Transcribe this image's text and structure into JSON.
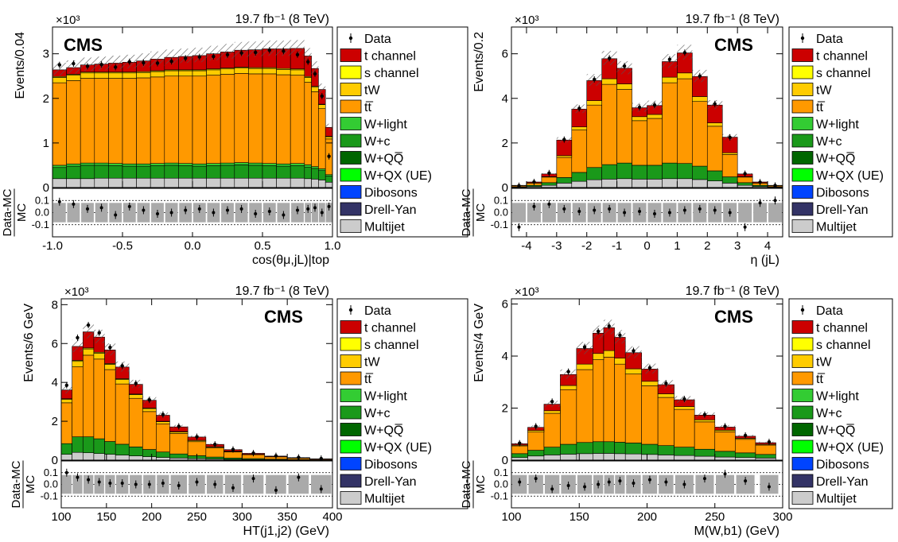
{
  "figure": {
    "lumi_label": "19.7 fb⁻¹ (8 TeV)",
    "cms_label": "CMS",
    "exponent_label": "×10³",
    "ratio_ylabel_top": "Data-MC",
    "ratio_ylabel_bottom": "MC"
  },
  "legend": [
    {
      "label": "Data",
      "style": "marker",
      "color": "#000000"
    },
    {
      "label": "t channel",
      "italic": "t",
      "style": "fill",
      "color": "#cc0000"
    },
    {
      "label": "s channel",
      "italic": "s",
      "style": "fill",
      "color": "#ffff00"
    },
    {
      "label": "tW",
      "style": "fill",
      "color": "#ffcc00"
    },
    {
      "label": "tt̅",
      "style": "fill",
      "color": "#ff9900"
    },
    {
      "label": "W+light",
      "style": "fill",
      "color": "#33cc33"
    },
    {
      "label": "W+c",
      "style": "fill",
      "color": "#1a991a"
    },
    {
      "label": "W+QQ̅",
      "style": "fill",
      "color": "#006600"
    },
    {
      "label": "W+QX (UE)",
      "style": "fill",
      "color": "#00ff00"
    },
    {
      "label": "Dibosons",
      "style": "fill",
      "color": "#0044ff"
    },
    {
      "label": "Drell-Yan",
      "style": "fill",
      "color": "#333366"
    },
    {
      "label": "Multijet",
      "style": "fill",
      "color": "#cccccc"
    }
  ],
  "chart_data": [
    {
      "id": "costheta",
      "type": "area",
      "title": "",
      "xlabel": "cos(θμ,jL)|top",
      "ylabel": "Events/0.04",
      "xlim": [
        -1.0,
        1.0
      ],
      "ylim": [
        0,
        3.6
      ],
      "y_scale_factor": 1000,
      "xticks": [
        -1.0,
        -0.5,
        0.0,
        0.5,
        1.0
      ],
      "xtick_labels": [
        "-1.0",
        "-0.5",
        "0.0",
        "0.5",
        "1.0"
      ],
      "yticks": [
        0,
        1,
        2,
        3
      ],
      "ratio_ylim": [
        -0.2,
        0.2
      ],
      "ratio_yticks": [
        -0.1,
        0.0,
        0.1
      ],
      "bins": [
        -1.0,
        -0.9,
        -0.8,
        -0.7,
        -0.6,
        -0.5,
        -0.4,
        -0.3,
        -0.2,
        -0.1,
        0.0,
        0.1,
        0.2,
        0.3,
        0.4,
        0.5,
        0.6,
        0.7,
        0.8,
        0.85,
        0.9,
        0.95
      ],
      "series": [
        {
          "name": "Multijet",
          "values": [
            0.2,
            0.2,
            0.2,
            0.21,
            0.21,
            0.21,
            0.21,
            0.21,
            0.21,
            0.21,
            0.21,
            0.21,
            0.21,
            0.21,
            0.21,
            0.21,
            0.21,
            0.21,
            0.2,
            0.19,
            0.17,
            0.12
          ]
        },
        {
          "name": "W+c",
          "values": [
            0.25,
            0.28,
            0.3,
            0.29,
            0.28,
            0.27,
            0.27,
            0.28,
            0.29,
            0.28,
            0.27,
            0.28,
            0.29,
            0.3,
            0.29,
            0.28,
            0.27,
            0.28,
            0.26,
            0.24,
            0.21,
            0.14
          ]
        },
        {
          "name": "W+light",
          "values": [
            0.05,
            0.05,
            0.05,
            0.05,
            0.05,
            0.05,
            0.05,
            0.05,
            0.05,
            0.05,
            0.05,
            0.05,
            0.05,
            0.05,
            0.05,
            0.05,
            0.05,
            0.05,
            0.05,
            0.04,
            0.04,
            0.03
          ]
        },
        {
          "name": "tt̅",
          "values": [
            1.85,
            1.87,
            1.9,
            1.9,
            1.91,
            1.92,
            1.93,
            1.94,
            1.95,
            1.96,
            1.97,
            1.98,
            1.99,
            2.0,
            2.0,
            2.01,
            2.0,
            1.98,
            1.85,
            1.68,
            1.35,
            0.8
          ]
        },
        {
          "name": "tW",
          "values": [
            0.12,
            0.12,
            0.12,
            0.12,
            0.12,
            0.12,
            0.12,
            0.12,
            0.12,
            0.12,
            0.12,
            0.12,
            0.12,
            0.12,
            0.12,
            0.12,
            0.12,
            0.12,
            0.11,
            0.1,
            0.09,
            0.05
          ]
        },
        {
          "name": "s channel",
          "values": [
            0.02,
            0.02,
            0.02,
            0.02,
            0.02,
            0.02,
            0.02,
            0.02,
            0.02,
            0.02,
            0.02,
            0.02,
            0.02,
            0.02,
            0.02,
            0.02,
            0.02,
            0.02,
            0.02,
            0.02,
            0.01,
            0.01
          ]
        },
        {
          "name": "t channel",
          "values": [
            0.15,
            0.15,
            0.16,
            0.18,
            0.2,
            0.22,
            0.24,
            0.26,
            0.28,
            0.3,
            0.32,
            0.34,
            0.36,
            0.38,
            0.4,
            0.42,
            0.44,
            0.46,
            0.46,
            0.4,
            0.33,
            0.2
          ]
        }
      ],
      "data_x": [
        -0.95,
        -0.85,
        -0.75,
        -0.65,
        -0.55,
        -0.45,
        -0.35,
        -0.25,
        -0.15,
        -0.05,
        0.05,
        0.15,
        0.25,
        0.35,
        0.45,
        0.55,
        0.65,
        0.75,
        0.825,
        0.875,
        0.925,
        0.975
      ],
      "data_values": [
        2.75,
        2.78,
        2.72,
        2.76,
        2.7,
        2.82,
        2.8,
        2.79,
        2.83,
        2.9,
        2.93,
        2.94,
        2.98,
        3.02,
        3.03,
        3.08,
        3.06,
        2.98,
        2.82,
        2.55,
        2.05,
        0.7
      ],
      "ratio_values": [
        0.09,
        0.07,
        0.03,
        0.04,
        -0.02,
        0.05,
        0.02,
        -0.01,
        0.0,
        0.02,
        0.03,
        0.0,
        0.02,
        0.03,
        -0.01,
        0.01,
        -0.02,
        0.02,
        0.03,
        0.04,
        0.0,
        0.05
      ],
      "labels_at_left": true
    },
    {
      "id": "eta",
      "type": "area",
      "title": "",
      "xlabel": "η (jL)",
      "ylabel": "Events/0.2",
      "xlim": [
        -4.5,
        4.5
      ],
      "ylim": [
        0,
        7.2
      ],
      "y_scale_factor": 1000,
      "xticks": [
        -4,
        -3,
        -2,
        -1,
        0,
        1,
        2,
        3,
        4
      ],
      "xtick_labels": [
        "-4",
        "-3",
        "-2",
        "-1",
        "0",
        "1",
        "2",
        "3",
        "4"
      ],
      "yticks": [
        0,
        2,
        4,
        6
      ],
      "ratio_ylim": [
        -0.2,
        0.2
      ],
      "ratio_yticks": [
        -0.1,
        0.0,
        0.1
      ],
      "bins": [
        -4.5,
        -4.0,
        -3.5,
        -3.0,
        -2.5,
        -2.0,
        -1.5,
        -1.0,
        -0.5,
        0.0,
        0.5,
        1.0,
        1.5,
        2.0,
        2.5,
        3.0,
        3.5,
        4.0
      ],
      "series": [
        {
          "name": "Multijet",
          "values": [
            0.02,
            0.05,
            0.1,
            0.2,
            0.28,
            0.35,
            0.38,
            0.4,
            0.38,
            0.38,
            0.4,
            0.4,
            0.36,
            0.3,
            0.2,
            0.1,
            0.05,
            0.02
          ]
        },
        {
          "name": "W+c",
          "values": [
            0.02,
            0.05,
            0.12,
            0.25,
            0.4,
            0.55,
            0.65,
            0.7,
            0.62,
            0.62,
            0.7,
            0.68,
            0.6,
            0.45,
            0.28,
            0.12,
            0.05,
            0.02
          ]
        },
        {
          "name": "tt̅",
          "values": [
            0.05,
            0.1,
            0.25,
            0.9,
            1.9,
            2.8,
            3.6,
            3.3,
            2.0,
            2.1,
            3.6,
            3.8,
            2.9,
            2.0,
            1.0,
            0.25,
            0.1,
            0.05
          ]
        },
        {
          "name": "tW",
          "values": [
            0.0,
            0.01,
            0.02,
            0.08,
            0.14,
            0.2,
            0.25,
            0.25,
            0.18,
            0.18,
            0.25,
            0.26,
            0.22,
            0.15,
            0.08,
            0.02,
            0.01,
            0.0
          ]
        },
        {
          "name": "t channel",
          "values": [
            0.01,
            0.04,
            0.12,
            0.7,
            0.8,
            0.9,
            0.9,
            0.7,
            0.4,
            0.4,
            0.7,
            0.9,
            0.9,
            0.8,
            0.7,
            0.12,
            0.04,
            0.01
          ]
        }
      ],
      "data_x": [
        -4.25,
        -3.75,
        -3.25,
        -2.75,
        -2.25,
        -1.75,
        -1.25,
        -0.75,
        -0.25,
        0.25,
        0.75,
        1.25,
        1.75,
        2.25,
        2.75,
        3.25,
        3.75,
        4.25
      ],
      "data_values": [
        0.08,
        0.25,
        0.65,
        2.15,
        3.55,
        4.85,
        5.8,
        5.45,
        3.6,
        3.7,
        5.75,
        6.05,
        5.0,
        3.75,
        2.25,
        0.62,
        0.24,
        0.09
      ],
      "ratio_values": [
        -0.12,
        0.05,
        0.07,
        0.03,
        0.01,
        0.02,
        0.03,
        0.0,
        0.01,
        -0.01,
        0.0,
        0.02,
        0.03,
        0.02,
        0.0,
        -0.12,
        0.08,
        0.1
      ],
      "labels_at_left": false
    },
    {
      "id": "ht",
      "type": "area",
      "title": "",
      "xlabel": "HT(j1,j2) (GeV)",
      "ylabel": "Events/6 GeV",
      "xlim": [
        100,
        400
      ],
      "ylim": [
        0,
        8.3
      ],
      "y_scale_factor": 1000,
      "xticks": [
        100,
        150,
        200,
        250,
        300,
        350,
        400
      ],
      "xtick_labels": [
        "100",
        "150",
        "200",
        "250",
        "300",
        "350",
        "400"
      ],
      "yticks": [
        0,
        2,
        4,
        6,
        8
      ],
      "ratio_ylim": [
        -0.2,
        0.2
      ],
      "ratio_yticks": [
        -0.1,
        0.0,
        0.1
      ],
      "bins": [
        100,
        112,
        124,
        136,
        148,
        160,
        175,
        190,
        205,
        220,
        240,
        260,
        280,
        300,
        325,
        350,
        375
      ],
      "series": [
        {
          "name": "Multijet",
          "values": [
            0.3,
            0.4,
            0.38,
            0.34,
            0.3,
            0.26,
            0.22,
            0.18,
            0.14,
            0.11,
            0.08,
            0.06,
            0.04,
            0.03,
            0.02,
            0.01,
            0.01
          ]
        },
        {
          "name": "W+c",
          "values": [
            0.55,
            0.8,
            0.82,
            0.76,
            0.66,
            0.56,
            0.46,
            0.37,
            0.28,
            0.21,
            0.15,
            0.1,
            0.07,
            0.05,
            0.03,
            0.02,
            0.01
          ]
        },
        {
          "name": "tt̅",
          "values": [
            2.1,
            3.6,
            4.2,
            4.1,
            3.7,
            3.1,
            2.5,
            1.95,
            1.45,
            1.05,
            0.72,
            0.48,
            0.31,
            0.2,
            0.12,
            0.07,
            0.04
          ]
        },
        {
          "name": "tW",
          "values": [
            0.18,
            0.28,
            0.32,
            0.3,
            0.27,
            0.23,
            0.19,
            0.15,
            0.11,
            0.08,
            0.06,
            0.04,
            0.03,
            0.02,
            0.01,
            0.01,
            0.0
          ]
        },
        {
          "name": "s channel",
          "values": [
            0.03,
            0.05,
            0.05,
            0.05,
            0.04,
            0.04,
            0.03,
            0.03,
            0.02,
            0.02,
            0.01,
            0.01,
            0.01,
            0.0,
            0.0,
            0.0,
            0.0
          ]
        },
        {
          "name": "t channel",
          "values": [
            0.45,
            0.72,
            0.83,
            0.78,
            0.7,
            0.6,
            0.5,
            0.4,
            0.31,
            0.24,
            0.17,
            0.12,
            0.08,
            0.05,
            0.03,
            0.02,
            0.01
          ]
        }
      ],
      "data_x": [
        106,
        118,
        130,
        142,
        154,
        167.5,
        182.5,
        197.5,
        212.5,
        230,
        250,
        270,
        290,
        312.5,
        337.5,
        362.5,
        387.5
      ],
      "data_values": [
        3.85,
        6.3,
        6.95,
        6.55,
        5.8,
        4.85,
        3.95,
        3.1,
        2.35,
        1.74,
        1.2,
        0.81,
        0.55,
        0.36,
        0.22,
        0.14,
        0.08
      ],
      "ratio_values": [
        0.1,
        0.06,
        0.04,
        0.02,
        0.01,
        0.01,
        0.0,
        0.0,
        0.01,
        -0.01,
        0.02,
        0.0,
        -0.03,
        0.05,
        -0.05,
        0.06,
        -0.04
      ],
      "labels_at_left": false
    },
    {
      "id": "mwb",
      "type": "area",
      "title": "",
      "xlabel": "M(W,b1) (GeV)",
      "ylabel": "Events/4 GeV",
      "xlim": [
        100,
        300
      ],
      "ylim": [
        0,
        6.2
      ],
      "y_scale_factor": 1000,
      "xticks": [
        100,
        150,
        200,
        250,
        300
      ],
      "xtick_labels": [
        "100",
        "150",
        "200",
        "250",
        "300"
      ],
      "yticks": [
        0,
        2,
        4,
        6
      ],
      "ratio_ylim": [
        -0.2,
        0.2
      ],
      "ratio_yticks": [
        -0.1,
        0.0,
        0.1
      ],
      "bins": [
        100,
        112,
        124,
        136,
        148,
        160,
        168,
        176,
        184,
        196,
        208,
        220,
        235,
        250,
        265,
        280
      ],
      "series": [
        {
          "name": "Multijet",
          "values": [
            0.1,
            0.16,
            0.2,
            0.23,
            0.25,
            0.26,
            0.26,
            0.25,
            0.24,
            0.22,
            0.2,
            0.18,
            0.15,
            0.12,
            0.1,
            0.08
          ]
        },
        {
          "name": "W+c",
          "values": [
            0.15,
            0.22,
            0.3,
            0.38,
            0.43,
            0.45,
            0.45,
            0.44,
            0.42,
            0.39,
            0.36,
            0.32,
            0.27,
            0.22,
            0.18,
            0.14
          ]
        },
        {
          "name": "tt̅",
          "values": [
            0.3,
            0.7,
            1.3,
            2.1,
            2.8,
            3.15,
            3.25,
            3.0,
            2.65,
            2.25,
            1.85,
            1.45,
            1.05,
            0.75,
            0.52,
            0.36
          ]
        },
        {
          "name": "tW",
          "values": [
            0.03,
            0.06,
            0.1,
            0.16,
            0.21,
            0.24,
            0.25,
            0.23,
            0.2,
            0.17,
            0.14,
            0.11,
            0.08,
            0.06,
            0.04,
            0.03
          ]
        },
        {
          "name": "t channel",
          "values": [
            0.05,
            0.12,
            0.25,
            0.42,
            0.6,
            0.78,
            0.88,
            0.8,
            0.62,
            0.47,
            0.35,
            0.26,
            0.18,
            0.12,
            0.08,
            0.06
          ]
        }
      ],
      "data_x": [
        106,
        118,
        130,
        142,
        154,
        164,
        172,
        180,
        190,
        202,
        214,
        227.5,
        242.5,
        257.5,
        272.5,
        290
      ],
      "data_values": [
        0.65,
        1.3,
        2.25,
        3.4,
        4.35,
        4.95,
        5.15,
        4.8,
        4.2,
        3.55,
        2.95,
        2.35,
        1.75,
        1.3,
        0.95,
        0.7
      ],
      "ratio_values": [
        0.02,
        0.05,
        -0.04,
        -0.01,
        -0.02,
        0.0,
        0.02,
        0.03,
        0.01,
        0.04,
        0.02,
        0.0,
        0.05,
        0.09,
        0.03,
        -0.02
      ],
      "labels_at_left": false
    }
  ]
}
